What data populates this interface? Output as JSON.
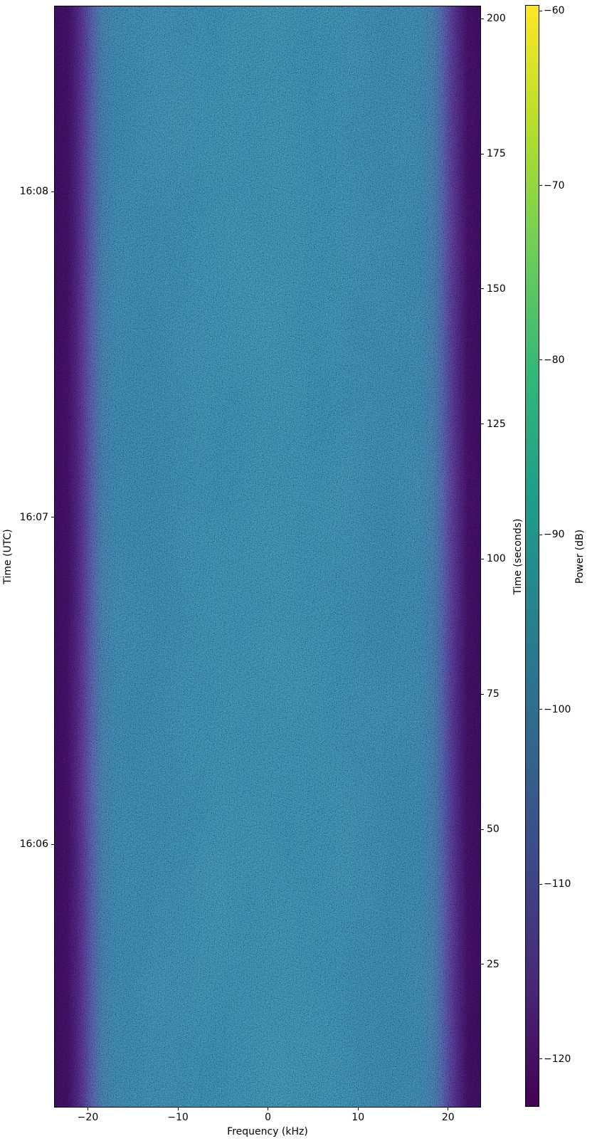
{
  "figure": {
    "background": "#ffffff",
    "kind": "spectrogram waterfall plot"
  },
  "chart_data": {
    "type": "heatmap",
    "title": "",
    "xlabel": "Frequency (kHz)",
    "ylabel_left": "Time (UTC)",
    "ylabel_right": "Time (seconds)",
    "colorbar_label": "Power (dB)",
    "colormap": "viridis",
    "grid": false,
    "xlim": [
      -23.75,
      23.65
    ],
    "ylim_seconds": [
      -1.5,
      202.4
    ],
    "x_ticks": [
      -20,
      -10,
      0,
      10,
      20
    ],
    "y_right_ticks": [
      200,
      175,
      150,
      125,
      100,
      75,
      50,
      25
    ],
    "y_left_ticks": [
      {
        "label": "16:08",
        "seconds": 168.0
      },
      {
        "label": "16:07",
        "seconds": 107.7
      },
      {
        "label": "16:06",
        "seconds": 47.2
      }
    ],
    "colorbar": {
      "vmin": -122.75,
      "vmax": -59.67,
      "ticks": [
        -60,
        -70,
        -80,
        -90,
        -100,
        -110,
        -120
      ]
    },
    "spectral_profile_db": [
      {
        "freq_khz": -23.7,
        "power_db": -122
      },
      {
        "freq_khz": -21.5,
        "power_db": -121
      },
      {
        "freq_khz": -20.5,
        "power_db": -115
      },
      {
        "freq_khz": -19.5,
        "power_db": -106
      },
      {
        "freq_khz": -18.0,
        "power_db": -101
      },
      {
        "freq_khz": -10.0,
        "power_db": -100
      },
      {
        "freq_khz": 0.0,
        "power_db": -99.5
      },
      {
        "freq_khz": 10.0,
        "power_db": -100
      },
      {
        "freq_khz": 18.0,
        "power_db": -101
      },
      {
        "freq_khz": 19.5,
        "power_db": -106
      },
      {
        "freq_khz": 20.5,
        "power_db": -115
      },
      {
        "freq_khz": 21.5,
        "power_db": -121
      },
      {
        "freq_khz": 23.65,
        "power_db": -122
      }
    ],
    "description": "Uniform wideband noise spectrogram over ~202 s (16:05-16:08 UTC): flat passband near -100 dB between about -20 and +20 kHz, rolling off to a noise floor near -122 dB beyond +/-21.5 kHz."
  },
  "colors": {
    "passband_blue": "#2e6b8e",
    "passband_center": "#2e7190",
    "noise_floor_purple": "#2f0a4a",
    "transition_purple": "#453080",
    "speckle_teal": "#3e96a5",
    "speckle_dark": "#264a77",
    "spectral_gradient": [
      {
        "p": 0.0,
        "c": "#2f0a4a"
      },
      {
        "p": 0.03,
        "c": "#330b4f"
      },
      {
        "p": 0.05,
        "c": "#3a1a61"
      },
      {
        "p": 0.07,
        "c": "#433079"
      },
      {
        "p": 0.09,
        "c": "#3e4e87"
      },
      {
        "p": 0.112,
        "c": "#34628c"
      },
      {
        "p": 0.15,
        "c": "#2e6b8e"
      },
      {
        "p": 0.5,
        "c": "#2e7190"
      },
      {
        "p": 0.85,
        "c": "#2e6b8e"
      },
      {
        "p": 0.888,
        "c": "#34628c"
      },
      {
        "p": 0.91,
        "c": "#3e4e87"
      },
      {
        "p": 0.93,
        "c": "#433079"
      },
      {
        "p": 0.952,
        "c": "#3a1a61"
      },
      {
        "p": 0.97,
        "c": "#330b4f"
      },
      {
        "p": 1.0,
        "c": "#2f0a4a"
      }
    ],
    "viridis_stops": [
      {
        "p": 0.0,
        "c": "#440154"
      },
      {
        "p": 0.111,
        "c": "#482878"
      },
      {
        "p": 0.222,
        "c": "#3e4989"
      },
      {
        "p": 0.333,
        "c": "#31688e"
      },
      {
        "p": 0.444,
        "c": "#26828e"
      },
      {
        "p": 0.556,
        "c": "#1f9e89"
      },
      {
        "p": 0.667,
        "c": "#35b779"
      },
      {
        "p": 0.778,
        "c": "#6ece58"
      },
      {
        "p": 0.889,
        "c": "#b5de2b"
      },
      {
        "p": 1.0,
        "c": "#fde725"
      }
    ]
  }
}
